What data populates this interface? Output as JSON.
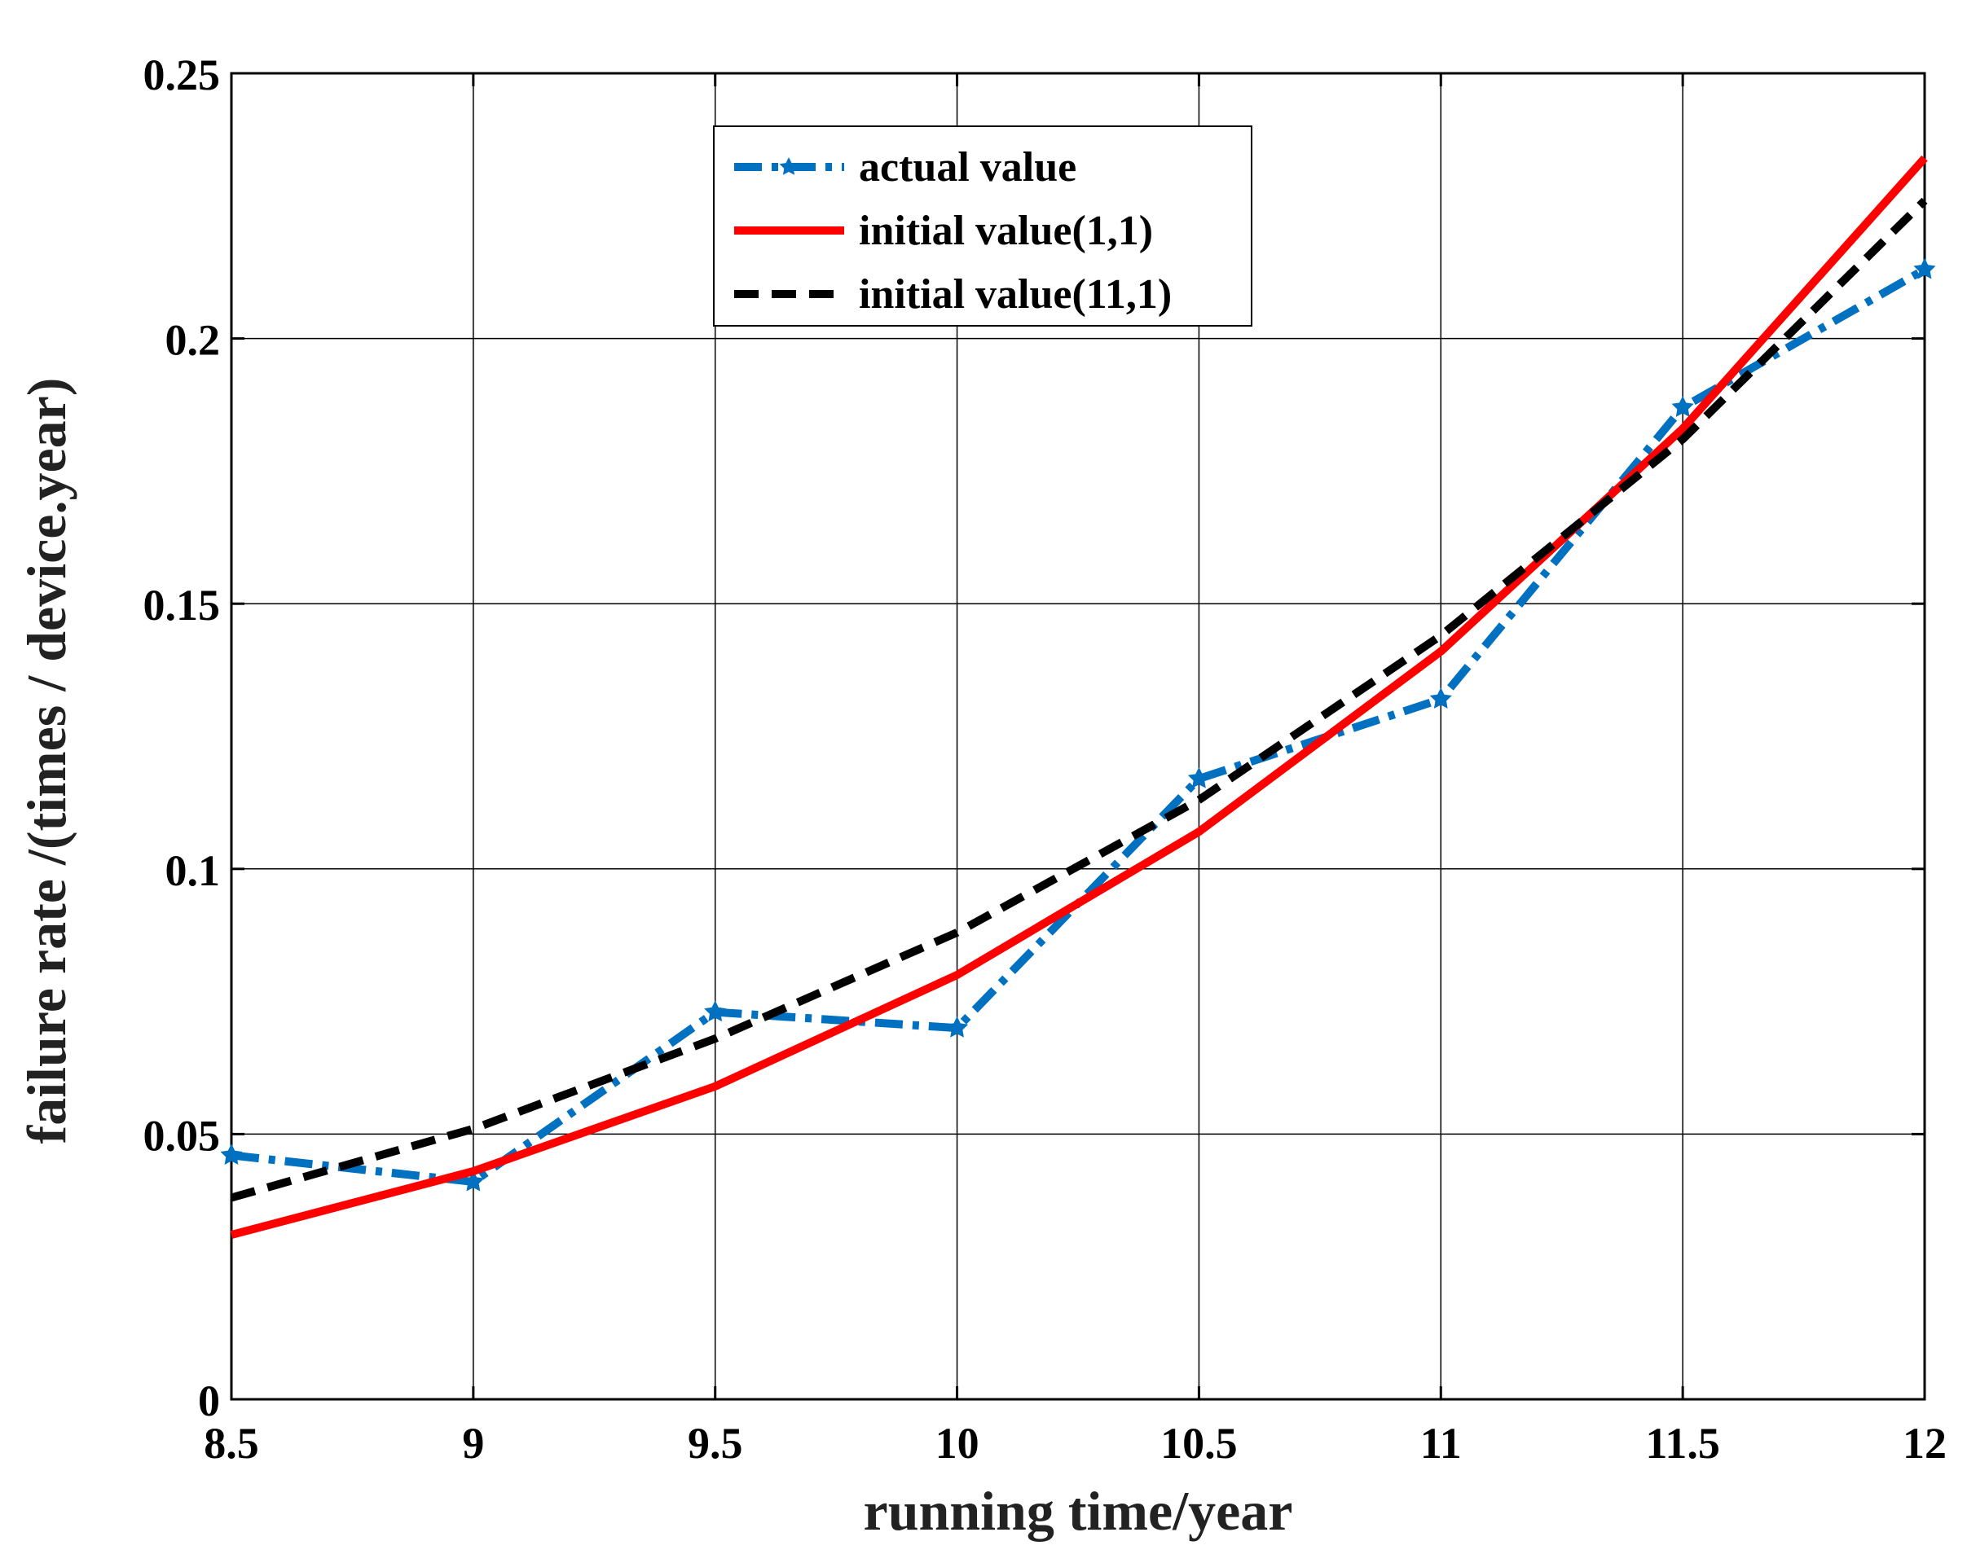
{
  "colors": {
    "actual": "#0070C0",
    "initial_1_1": "#FF0000",
    "initial_11_1": "#000000",
    "grid": "#000000",
    "axes": "#000000"
  },
  "chart_data": {
    "type": "line",
    "title": "",
    "xlabel": "running time/year",
    "ylabel": "failure rate /(times / device.year)",
    "xlim": [
      8.5,
      12
    ],
    "ylim": [
      0,
      0.25
    ],
    "grid": true,
    "legend_position": "top-center",
    "x_ticks": [
      8.5,
      9,
      9.5,
      10,
      10.5,
      11,
      11.5,
      12
    ],
    "x_tick_labels": [
      "8.5",
      "9",
      "9.5",
      "10",
      "10.5",
      "11",
      "11.5",
      "12"
    ],
    "y_ticks": [
      0,
      0.05,
      0.1,
      0.15,
      0.2,
      0.25
    ],
    "y_tick_labels": [
      "0",
      "0.05",
      "0.1",
      "0.15",
      "0.2",
      "0.25"
    ],
    "series": [
      {
        "name": "actual value",
        "style": "dash-dot",
        "marker": "star",
        "color_key": "actual",
        "x": [
          8.5,
          9,
          9.5,
          10,
          10.5,
          11,
          11.5,
          12
        ],
        "values": [
          0.046,
          0.041,
          0.073,
          0.07,
          0.117,
          0.132,
          0.187,
          0.213
        ]
      },
      {
        "name": "initial value(1,1)",
        "style": "solid",
        "marker": "none",
        "color_key": "initial_1_1",
        "x": [
          8.5,
          9,
          9.5,
          10,
          10.5,
          11,
          11.5,
          12
        ],
        "values": [
          0.031,
          0.043,
          0.059,
          0.08,
          0.107,
          0.141,
          0.183,
          0.234
        ]
      },
      {
        "name": "initial value(11,1)",
        "style": "dashed",
        "marker": "none",
        "color_key": "initial_11_1",
        "x": [
          8.5,
          9,
          9.5,
          10,
          10.5,
          11,
          11.5,
          12
        ],
        "values": [
          0.038,
          0.051,
          0.068,
          0.088,
          0.113,
          0.144,
          0.181,
          0.226
        ]
      }
    ]
  }
}
